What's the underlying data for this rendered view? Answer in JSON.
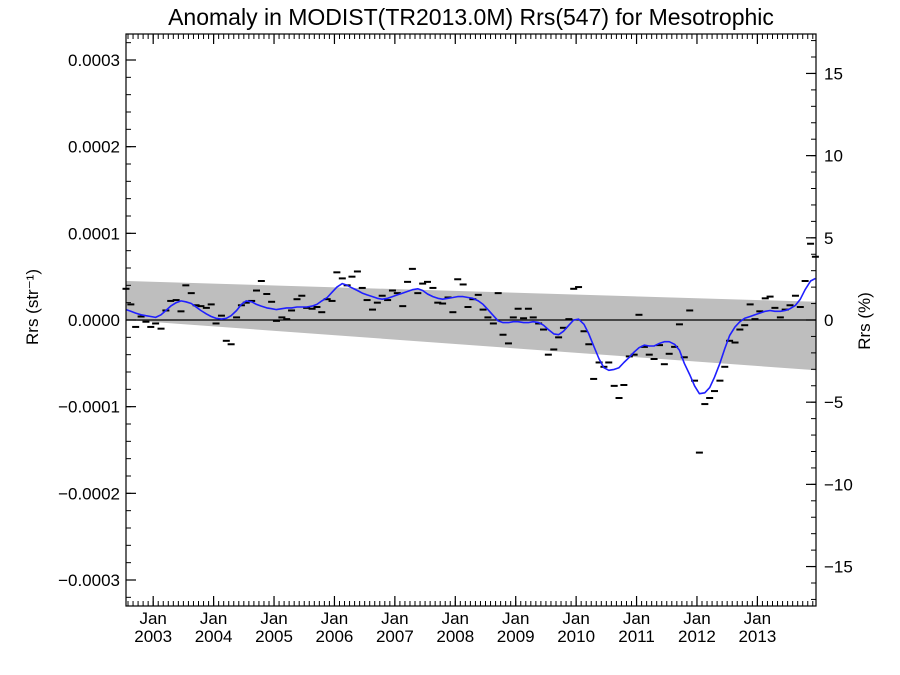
{
  "chart_data": {
    "type": "line",
    "title": "Anomaly in MODIST(TR2013.0M) Rrs(547) for Mesotrophic",
    "ylabel": "Rrs (str⁻¹)",
    "ylabel_right": "Rrs (%)",
    "xlabel": "",
    "x_range": [
      2002.55,
      2013.97
    ],
    "ylim": [
      -0.00033,
      0.00033
    ],
    "ylim_right": [
      -17.4,
      17.4
    ],
    "grid": false,
    "yticks": [
      {
        "v": 0.0003,
        "label": "0.0003"
      },
      {
        "v": 0.0002,
        "label": "0.0002"
      },
      {
        "v": 0.0001,
        "label": "0.0001"
      },
      {
        "v": 0.0,
        "label": "0.0000"
      },
      {
        "v": -0.0001,
        "label": "−0.0001"
      },
      {
        "v": -0.0002,
        "label": "−0.0002"
      },
      {
        "v": -0.0003,
        "label": "−0.0003"
      }
    ],
    "yticks_right": [
      {
        "v": 15,
        "label": "15"
      },
      {
        "v": 10,
        "label": "10"
      },
      {
        "v": 5,
        "label": "5"
      },
      {
        "v": 0,
        "label": "0"
      },
      {
        "v": -5,
        "label": "−5"
      },
      {
        "v": -10,
        "label": "−10"
      },
      {
        "v": -15,
        "label": "−15"
      }
    ],
    "xticks": [
      {
        "v": 2003.0,
        "month": "Jan",
        "year": "2003"
      },
      {
        "v": 2004.0,
        "month": "Jan",
        "year": "2004"
      },
      {
        "v": 2005.0,
        "month": "Jan",
        "year": "2005"
      },
      {
        "v": 2006.0,
        "month": "Jan",
        "year": "2006"
      },
      {
        "v": 2007.0,
        "month": "Jan",
        "year": "2007"
      },
      {
        "v": 2008.0,
        "month": "Jan",
        "year": "2008"
      },
      {
        "v": 2009.0,
        "month": "Jan",
        "year": "2009"
      },
      {
        "v": 2010.0,
        "month": "Jan",
        "year": "2010"
      },
      {
        "v": 2011.0,
        "month": "Jan",
        "year": "2011"
      },
      {
        "v": 2012.0,
        "month": "Jan",
        "year": "2012"
      },
      {
        "v": 2013.0,
        "month": "Jan",
        "year": "2013"
      }
    ],
    "trend_band": {
      "x": [
        2002.55,
        2013.97
      ],
      "upper": [
        4.5e-05,
        2.1e-05
      ],
      "lower": [
        0.0,
        -5.8e-05
      ],
      "color": "#bebebe"
    },
    "zero_line": 0,
    "monthly_anomalies": [
      [
        2002.55,
        3.6e-05
      ],
      [
        2002.63,
        1.8e-05
      ],
      [
        2002.71,
        -8e-06
      ],
      [
        2002.8,
        4e-06
      ],
      [
        2002.88,
        -2e-06
      ],
      [
        2002.96,
        -8e-06
      ],
      [
        2003.04,
        -4e-06
      ],
      [
        2003.13,
        -1e-05
      ],
      [
        2003.21,
        1.1e-05
      ],
      [
        2003.29,
        2.2e-05
      ],
      [
        2003.38,
        2.3e-05
      ],
      [
        2003.46,
        1e-05
      ],
      [
        2003.54,
        4e-05
      ],
      [
        2003.63,
        3.1e-05
      ],
      [
        2003.71,
        1.7e-05
      ],
      [
        2003.79,
        1.6e-05
      ],
      [
        2003.88,
        1.4e-05
      ],
      [
        2003.96,
        1.8e-05
      ],
      [
        2004.04,
        -4e-06
      ],
      [
        2004.13,
        5e-06
      ],
      [
        2004.21,
        -2.4e-05
      ],
      [
        2004.29,
        -2.8e-05
      ],
      [
        2004.38,
        3e-06
      ],
      [
        2004.46,
        1.7e-05
      ],
      [
        2004.54,
        2e-05
      ],
      [
        2004.63,
        2.2e-05
      ],
      [
        2004.71,
        3.4e-05
      ],
      [
        2004.79,
        4.5e-05
      ],
      [
        2004.88,
        3e-05
      ],
      [
        2004.96,
        2.1e-05
      ],
      [
        2005.04,
        -1e-06
      ],
      [
        2005.13,
        3e-06
      ],
      [
        2005.21,
        1e-06
      ],
      [
        2005.29,
        1.1e-05
      ],
      [
        2005.38,
        2.4e-05
      ],
      [
        2005.46,
        2.8e-05
      ],
      [
        2005.54,
        1.4e-05
      ],
      [
        2005.63,
        1.3e-05
      ],
      [
        2005.71,
        1.5e-05
      ],
      [
        2005.79,
        9e-06
      ],
      [
        2005.88,
        2.4e-05
      ],
      [
        2005.96,
        2.2e-05
      ],
      [
        2006.04,
        5.5e-05
      ],
      [
        2006.13,
        4.8e-05
      ],
      [
        2006.21,
        4e-05
      ],
      [
        2006.29,
        5e-05
      ],
      [
        2006.38,
        5.6e-05
      ],
      [
        2006.46,
        3.7e-05
      ],
      [
        2006.54,
        2.3e-05
      ],
      [
        2006.63,
        1.2e-05
      ],
      [
        2006.71,
        2e-05
      ],
      [
        2006.79,
        2.8e-05
      ],
      [
        2006.88,
        2.3e-05
      ],
      [
        2006.96,
        3.4e-05
      ],
      [
        2007.04,
        3.1e-05
      ],
      [
        2007.13,
        1.6e-05
      ],
      [
        2007.21,
        4.4e-05
      ],
      [
        2007.29,
        5.9e-05
      ],
      [
        2007.38,
        3.1e-05
      ],
      [
        2007.46,
        4.2e-05
      ],
      [
        2007.54,
        4.4e-05
      ],
      [
        2007.63,
        3.7e-05
      ],
      [
        2007.71,
        2e-05
      ],
      [
        2007.79,
        1.9e-05
      ],
      [
        2007.88,
        2.6e-05
      ],
      [
        2007.96,
        9e-06
      ],
      [
        2008.04,
        4.7e-05
      ],
      [
        2008.13,
        4.1e-05
      ],
      [
        2008.21,
        1.5e-05
      ],
      [
        2008.29,
        2.4e-05
      ],
      [
        2008.38,
        2.9e-05
      ],
      [
        2008.46,
        1.2e-05
      ],
      [
        2008.54,
        3e-06
      ],
      [
        2008.63,
        -4e-06
      ],
      [
        2008.71,
        3.1e-05
      ],
      [
        2008.79,
        -1.7e-05
      ],
      [
        2008.88,
        -2.7e-05
      ],
      [
        2008.96,
        3e-06
      ],
      [
        2009.04,
        1.3e-05
      ],
      [
        2009.13,
        2e-06
      ],
      [
        2009.21,
        1.3e-05
      ],
      [
        2009.29,
        3e-06
      ],
      [
        2009.38,
        -4e-06
      ],
      [
        2009.46,
        -1.1e-05
      ],
      [
        2009.54,
        -4e-05
      ],
      [
        2009.63,
        -3.4e-05
      ],
      [
        2009.71,
        -2e-05
      ],
      [
        2009.79,
        -9e-06
      ],
      [
        2009.88,
        1e-06
      ],
      [
        2009.96,
        3.6e-05
      ],
      [
        2010.04,
        3.8e-05
      ],
      [
        2010.13,
        -1.3e-05
      ],
      [
        2010.21,
        -2.8e-05
      ],
      [
        2010.29,
        -6.8e-05
      ],
      [
        2010.38,
        -4.9e-05
      ],
      [
        2010.46,
        -5.4e-05
      ],
      [
        2010.54,
        -4.9e-05
      ],
      [
        2010.63,
        -7.6e-05
      ],
      [
        2010.71,
        -9e-05
      ],
      [
        2010.79,
        -7.5e-05
      ],
      [
        2010.88,
        -4.2e-05
      ],
      [
        2010.96,
        -4e-05
      ],
      [
        2011.04,
        6e-06
      ],
      [
        2011.13,
        -3.1e-05
      ],
      [
        2011.21,
        -4e-05
      ],
      [
        2011.29,
        -4.5e-05
      ],
      [
        2011.38,
        -2.9e-05
      ],
      [
        2011.46,
        -5.1e-05
      ],
      [
        2011.54,
        -3.9e-05
      ],
      [
        2011.63,
        -3.1e-05
      ],
      [
        2011.71,
        -5e-06
      ],
      [
        2011.79,
        -4.3e-05
      ],
      [
        2011.88,
        1.1e-05
      ],
      [
        2011.96,
        -7e-05
      ],
      [
        2012.04,
        -0.000153
      ],
      [
        2012.13,
        -9.7e-05
      ],
      [
        2012.21,
        -9e-05
      ],
      [
        2012.29,
        -8.2e-05
      ],
      [
        2012.38,
        -7e-05
      ],
      [
        2012.46,
        -5.4e-05
      ],
      [
        2012.54,
        -2.4e-05
      ],
      [
        2012.63,
        -2.6e-05
      ],
      [
        2012.71,
        -1.1e-05
      ],
      [
        2012.79,
        -6e-06
      ],
      [
        2012.88,
        1.8e-05
      ],
      [
        2012.96,
        1e-06
      ],
      [
        2013.04,
        1e-05
      ],
      [
        2013.13,
        2.5e-05
      ],
      [
        2013.21,
        2.7e-05
      ],
      [
        2013.29,
        1.4e-05
      ],
      [
        2013.38,
        3e-06
      ],
      [
        2013.46,
        1.2e-05
      ],
      [
        2013.54,
        1.7e-05
      ],
      [
        2013.63,
        2.8e-05
      ],
      [
        2013.71,
        1.5e-05
      ],
      [
        2013.79,
        4.5e-05
      ],
      [
        2013.88,
        8.8e-05
      ],
      [
        2013.96,
        7.3e-05
      ]
    ],
    "running_mean": {
      "color": "#1f1fff",
      "points": [
        [
          2002.55,
          1.2e-05
        ],
        [
          2002.63,
          1e-05
        ],
        [
          2002.71,
          8e-06
        ],
        [
          2002.8,
          6e-06
        ],
        [
          2002.88,
          5e-06
        ],
        [
          2002.96,
          4e-06
        ],
        [
          2003.04,
          3e-06
        ],
        [
          2003.13,
          6e-06
        ],
        [
          2003.21,
          1.1e-05
        ],
        [
          2003.29,
          1.6e-05
        ],
        [
          2003.38,
          2e-05
        ],
        [
          2003.46,
          2.2e-05
        ],
        [
          2003.54,
          2.1e-05
        ],
        [
          2003.63,
          1.9e-05
        ],
        [
          2003.71,
          1.5e-05
        ],
        [
          2003.79,
          1.1e-05
        ],
        [
          2003.88,
          7e-06
        ],
        [
          2003.96,
          4e-06
        ],
        [
          2004.04,
          2e-06
        ],
        [
          2004.13,
          1e-06
        ],
        [
          2004.21,
          2e-06
        ],
        [
          2004.29,
          5e-06
        ],
        [
          2004.38,
          1.1e-05
        ],
        [
          2004.46,
          1.8e-05
        ],
        [
          2004.54,
          2.2e-05
        ],
        [
          2004.63,
          2.1e-05
        ],
        [
          2004.71,
          1.8e-05
        ],
        [
          2004.79,
          1.6e-05
        ],
        [
          2004.88,
          1.4e-05
        ],
        [
          2004.96,
          1.3e-05
        ],
        [
          2005.04,
          1.2e-05
        ],
        [
          2005.13,
          1.3e-05
        ],
        [
          2005.21,
          1.4e-05
        ],
        [
          2005.29,
          1.4e-05
        ],
        [
          2005.38,
          1.5e-05
        ],
        [
          2005.46,
          1.5e-05
        ],
        [
          2005.54,
          1.5e-05
        ],
        [
          2005.63,
          1.6e-05
        ],
        [
          2005.71,
          1.8e-05
        ],
        [
          2005.79,
          2.2e-05
        ],
        [
          2005.88,
          2.6e-05
        ],
        [
          2005.96,
          3.2e-05
        ],
        [
          2006.04,
          3.8e-05
        ],
        [
          2006.13,
          4.2e-05
        ],
        [
          2006.21,
          4e-05
        ],
        [
          2006.29,
          3.7e-05
        ],
        [
          2006.38,
          3.4e-05
        ],
        [
          2006.46,
          3.1e-05
        ],
        [
          2006.54,
          2.9e-05
        ],
        [
          2006.63,
          2.7e-05
        ],
        [
          2006.71,
          2.5e-05
        ],
        [
          2006.79,
          2.4e-05
        ],
        [
          2006.88,
          2.5e-05
        ],
        [
          2006.96,
          2.7e-05
        ],
        [
          2007.04,
          2.9e-05
        ],
        [
          2007.13,
          3.1e-05
        ],
        [
          2007.21,
          3.3e-05
        ],
        [
          2007.29,
          3.5e-05
        ],
        [
          2007.38,
          3.6e-05
        ],
        [
          2007.46,
          3.4e-05
        ],
        [
          2007.54,
          3e-05
        ],
        [
          2007.63,
          2.7e-05
        ],
        [
          2007.71,
          2.5e-05
        ],
        [
          2007.79,
          2.4e-05
        ],
        [
          2007.88,
          2.5e-05
        ],
        [
          2007.96,
          2.6e-05
        ],
        [
          2008.04,
          2.7e-05
        ],
        [
          2008.13,
          2.7e-05
        ],
        [
          2008.21,
          2.6e-05
        ],
        [
          2008.29,
          2.5e-05
        ],
        [
          2008.38,
          2.2e-05
        ],
        [
          2008.46,
          1.8e-05
        ],
        [
          2008.54,
          1.2e-05
        ],
        [
          2008.63,
          5e-06
        ],
        [
          2008.71,
          -1e-06
        ],
        [
          2008.79,
          -3e-06
        ],
        [
          2008.88,
          -3e-06
        ],
        [
          2008.96,
          -2e-06
        ],
        [
          2009.04,
          -2e-06
        ],
        [
          2009.13,
          -3e-06
        ],
        [
          2009.21,
          -3e-06
        ],
        [
          2009.29,
          -2e-06
        ],
        [
          2009.38,
          -3e-06
        ],
        [
          2009.46,
          -6e-06
        ],
        [
          2009.54,
          -1.1e-05
        ],
        [
          2009.63,
          -1.6e-05
        ],
        [
          2009.71,
          -1.7e-05
        ],
        [
          2009.79,
          -1.3e-05
        ],
        [
          2009.88,
          -6e-06
        ],
        [
          2009.96,
          0.0
        ],
        [
          2010.04,
          1e-06
        ],
        [
          2010.13,
          -5e-06
        ],
        [
          2010.21,
          -1.6e-05
        ],
        [
          2010.29,
          -3e-05
        ],
        [
          2010.38,
          -4.5e-05
        ],
        [
          2010.46,
          -5.5e-05
        ],
        [
          2010.54,
          -5.8e-05
        ],
        [
          2010.63,
          -5.7e-05
        ],
        [
          2010.71,
          -5.5e-05
        ],
        [
          2010.79,
          -4.9e-05
        ],
        [
          2010.88,
          -4.3e-05
        ],
        [
          2010.96,
          -3.7e-05
        ],
        [
          2011.04,
          -3.2e-05
        ],
        [
          2011.13,
          -2.9e-05
        ],
        [
          2011.21,
          -3e-05
        ],
        [
          2011.29,
          -3e-05
        ],
        [
          2011.38,
          -2.7e-05
        ],
        [
          2011.46,
          -2.5e-05
        ],
        [
          2011.54,
          -2.5e-05
        ],
        [
          2011.63,
          -2.8e-05
        ],
        [
          2011.71,
          -3.5e-05
        ],
        [
          2011.79,
          -5e-05
        ],
        [
          2011.88,
          -6.3e-05
        ],
        [
          2011.96,
          -7.6e-05
        ],
        [
          2012.04,
          -8.5e-05
        ],
        [
          2012.13,
          -8.4e-05
        ],
        [
          2012.21,
          -7.8e-05
        ],
        [
          2012.29,
          -6.6e-05
        ],
        [
          2012.38,
          -5e-05
        ],
        [
          2012.46,
          -3.3e-05
        ],
        [
          2012.54,
          -1.8e-05
        ],
        [
          2012.63,
          -8e-06
        ],
        [
          2012.71,
          -2e-06
        ],
        [
          2012.79,
          2e-06
        ],
        [
          2012.88,
          4e-06
        ],
        [
          2012.96,
          6e-06
        ],
        [
          2013.04,
          8e-06
        ],
        [
          2013.13,
          1e-05
        ],
        [
          2013.21,
          1.1e-05
        ],
        [
          2013.29,
          1e-05
        ],
        [
          2013.38,
          1e-05
        ],
        [
          2013.46,
          1.1e-05
        ],
        [
          2013.54,
          1.3e-05
        ],
        [
          2013.63,
          1.7e-05
        ],
        [
          2013.71,
          2.4e-05
        ],
        [
          2013.79,
          3.5e-05
        ],
        [
          2013.88,
          4.5e-05
        ],
        [
          2013.96,
          4.8e-05
        ]
      ]
    }
  }
}
